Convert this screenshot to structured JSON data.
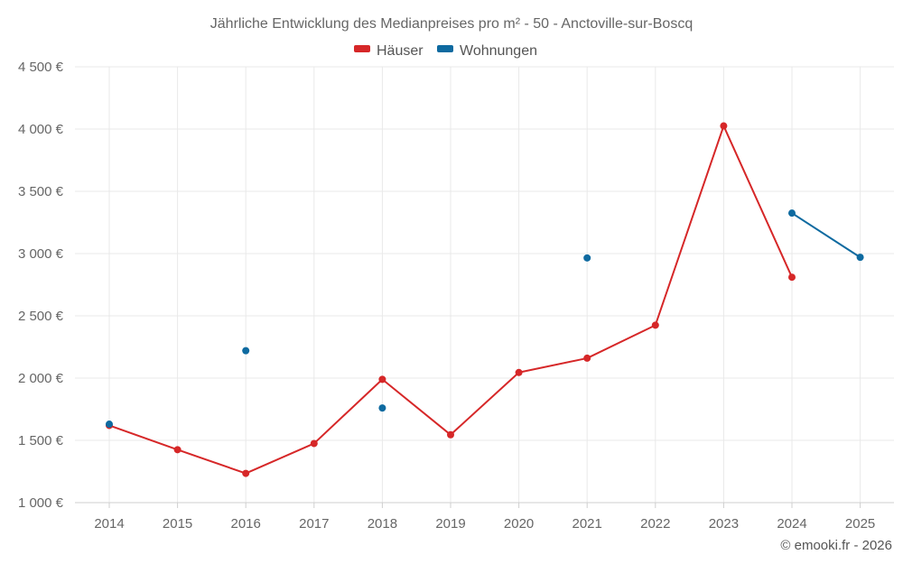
{
  "chart_data": {
    "type": "line",
    "title": "Jährliche Entwicklung des Medianpreises pro m² - 50 - Anctoville-sur-Boscq",
    "categories": [
      "2014",
      "2015",
      "2016",
      "2017",
      "2018",
      "2019",
      "2020",
      "2021",
      "2022",
      "2023",
      "2024",
      "2025"
    ],
    "y_tick_labels": [
      "1 000 €",
      "1 500 €",
      "2 000 €",
      "2 500 €",
      "3 000 €",
      "3 500 €",
      "4 000 €",
      "4 500 €"
    ],
    "y_ticks": [
      1000,
      1500,
      2000,
      2500,
      3000,
      3500,
      4000,
      4500
    ],
    "ylim": [
      1000,
      4500
    ],
    "grid": true,
    "legend_position": "top-center",
    "series": [
      {
        "name": "Häuser",
        "color": "#d62728",
        "values": [
          1620,
          1425,
          1235,
          1475,
          1990,
          1545,
          2045,
          2160,
          2425,
          4025,
          2810,
          null
        ]
      },
      {
        "name": "Wohnungen",
        "color": "#0e6aa0",
        "values": [
          1630,
          null,
          2220,
          null,
          1760,
          null,
          null,
          2965,
          null,
          null,
          3325,
          2970
        ]
      }
    ],
    "credit": "© emooki.fr - 2026"
  }
}
